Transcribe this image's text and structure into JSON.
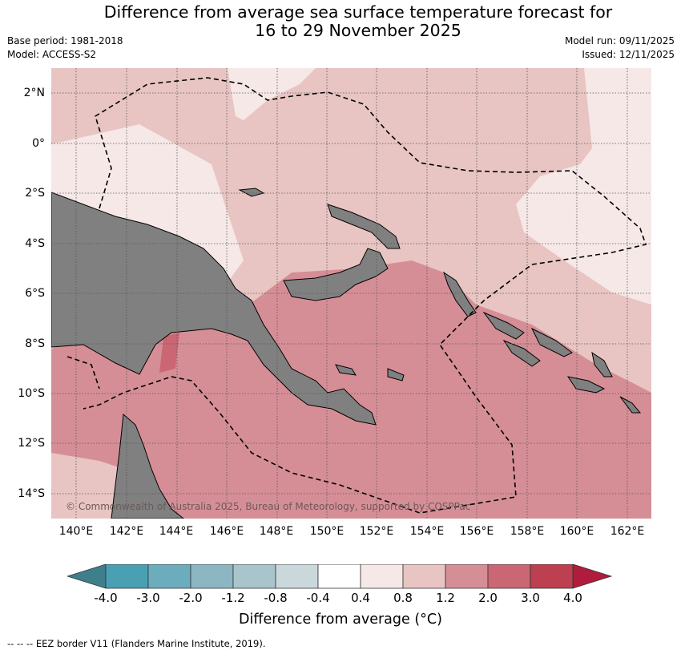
{
  "header": {
    "title_line1": "Difference from average sea surface temperature forecast for",
    "title_line2": "16 to 29 November 2025",
    "base_period": "Base period: 1981-2018",
    "model": "Model: ACCESS-S2",
    "model_run": "Model run: 09/11/2025",
    "issued": "Issued: 12/11/2025"
  },
  "map": {
    "latitude_labels": [
      "2°N",
      "0°",
      "2°S",
      "4°S",
      "6°S",
      "8°S",
      "10°S",
      "12°S",
      "14°S"
    ],
    "longitude_labels": [
      "140°E",
      "142°E",
      "144°E",
      "146°E",
      "148°E",
      "150°E",
      "152°E",
      "154°E",
      "156°E",
      "158°E",
      "160°E",
      "162°E"
    ],
    "copyright": "© Commonwealth of Australia 2025, Bureau of Meteorology, supported by COSPPac",
    "colors": {
      "land": "#808080",
      "anomaly_0_4_to_0_8": "#f5e8e6",
      "anomaly_0_8_to_1_2": "#e8c5c2",
      "anomaly_1_2_to_2_0": "#d68e96"
    }
  },
  "colorbar": {
    "ticks": [
      "-4.0",
      "-3.0",
      "-2.0",
      "-1.2",
      "-0.8",
      "-0.4",
      "0.4",
      "0.8",
      "1.2",
      "2.0",
      "3.0",
      "4.0"
    ],
    "colors": [
      "#3f7f8b",
      "#4aa0b3",
      "#6badbd",
      "#8bb6c2",
      "#a9c5cb",
      "#cbd8db",
      "#ffffff",
      "#f5e8e6",
      "#e8c5c2",
      "#d68e96",
      "#cb6774",
      "#bd4050",
      "#b01c3b"
    ],
    "title": "Difference from average (°C)"
  },
  "footer": {
    "eez_note": "--  --  -- EEZ border V11 (Flanders Marine Institute, 2019)."
  }
}
